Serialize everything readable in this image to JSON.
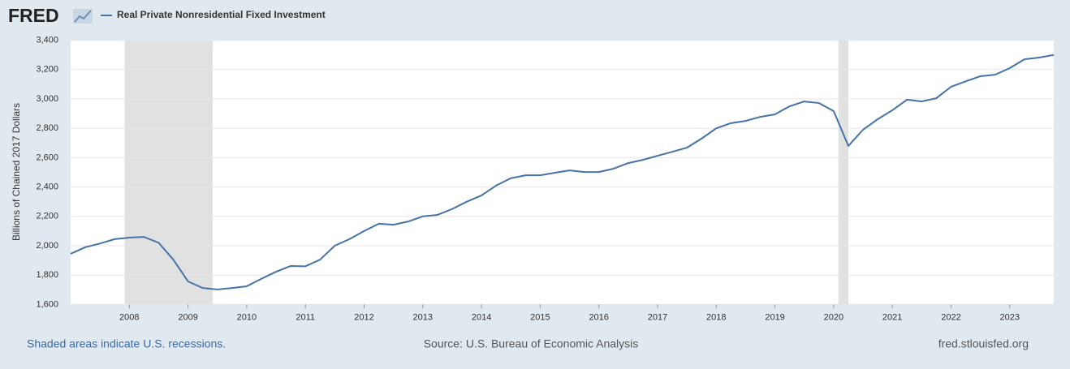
{
  "chart_data": {
    "type": "line",
    "brand": "FRED",
    "y_label": "Billions of Chained 2017 Dollars",
    "x": [
      2007,
      2007.25,
      2007.5,
      2007.75,
      2008,
      2008.25,
      2008.5,
      2008.75,
      2009,
      2009.25,
      2009.5,
      2009.75,
      2010,
      2010.25,
      2010.5,
      2010.75,
      2011,
      2011.25,
      2011.5,
      2011.75,
      2012,
      2012.25,
      2012.5,
      2012.75,
      2013,
      2013.25,
      2013.5,
      2013.75,
      2014,
      2014.25,
      2014.5,
      2014.75,
      2015,
      2015.25,
      2015.5,
      2015.75,
      2016,
      2016.25,
      2016.5,
      2016.75,
      2017,
      2017.25,
      2017.5,
      2017.75,
      2018,
      2018.25,
      2018.5,
      2018.75,
      2019,
      2019.25,
      2019.5,
      2019.75,
      2020,
      2020.25,
      2020.5,
      2020.75,
      2021,
      2021.25,
      2021.5,
      2021.75,
      2022,
      2022.25,
      2022.5,
      2022.75,
      2023,
      2023.25,
      2023.5,
      2023.75
    ],
    "series": [
      {
        "name": "Real Private Nonresidential Fixed Investment",
        "color": "#4572a7",
        "values": [
          1945,
          1990,
          2015,
          2045,
          2055,
          2060,
          2020,
          1905,
          1757,
          1712,
          1702,
          1712,
          1724,
          1775,
          1823,
          1862,
          1860,
          1905,
          2000,
          2045,
          2100,
          2150,
          2143,
          2165,
          2200,
          2210,
          2250,
          2300,
          2343,
          2410,
          2460,
          2480,
          2480,
          2497,
          2513,
          2502,
          2502,
          2525,
          2563,
          2585,
          2613,
          2640,
          2668,
          2730,
          2800,
          2835,
          2850,
          2878,
          2895,
          2950,
          2983,
          2972,
          2917,
          2680,
          2790,
          2862,
          2923,
          2995,
          2983,
          3005,
          3083,
          3120,
          3155,
          3165,
          3210,
          3270,
          3282,
          3300
        ]
      }
    ],
    "recessions": [
      [
        2007.92,
        2009.42
      ],
      [
        2020.08,
        2020.25
      ]
    ],
    "xlim": [
      2007,
      2023.75
    ],
    "xticks": [
      2008,
      2009,
      2010,
      2011,
      2012,
      2013,
      2014,
      2015,
      2016,
      2017,
      2018,
      2019,
      2020,
      2021,
      2022,
      2023
    ],
    "ylim": [
      1600,
      3400
    ],
    "yticks": [
      {
        "value": 1600,
        "label": "1,600"
      },
      {
        "value": 1800,
        "label": "1,800"
      },
      {
        "value": 2000,
        "label": "2,000"
      },
      {
        "value": 2200,
        "label": "2,200"
      },
      {
        "value": 2400,
        "label": "2,400"
      },
      {
        "value": 2600,
        "label": "2,600"
      },
      {
        "value": 2800,
        "label": "2,800"
      },
      {
        "value": 3000,
        "label": "3,000"
      },
      {
        "value": 3200,
        "label": "3,200"
      },
      {
        "value": 3400,
        "label": "3,400"
      }
    ],
    "grid": true
  },
  "footer": {
    "note": "Shaded areas indicate U.S. recessions.",
    "source": "Source: U.S. Bureau of Economic Analysis",
    "site": "fred.stlouisfed.org"
  }
}
